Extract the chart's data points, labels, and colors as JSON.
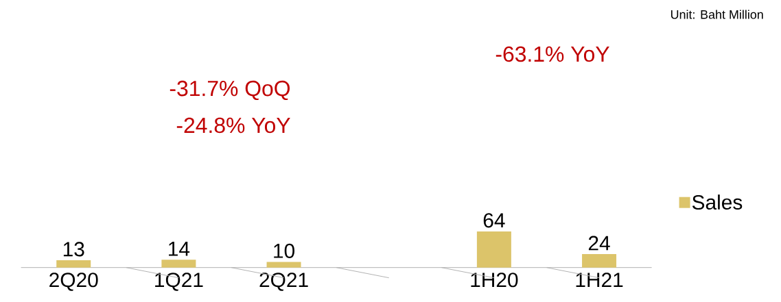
{
  "chart_data": {
    "type": "bar",
    "categories": [
      "2Q20",
      "1Q21",
      "2Q21",
      null,
      "1H20",
      "1H21"
    ],
    "series": [
      {
        "name": "Sales",
        "color": "#dcc46a",
        "values": [
          13,
          14,
          10,
          null,
          64,
          24
        ]
      }
    ],
    "data_labels": true,
    "legend": "right",
    "annotations": [
      "Unit: Baht Million",
      "-31.7% QoQ",
      "-24.8% YoY",
      "-63.1% YoY"
    ]
  }
}
